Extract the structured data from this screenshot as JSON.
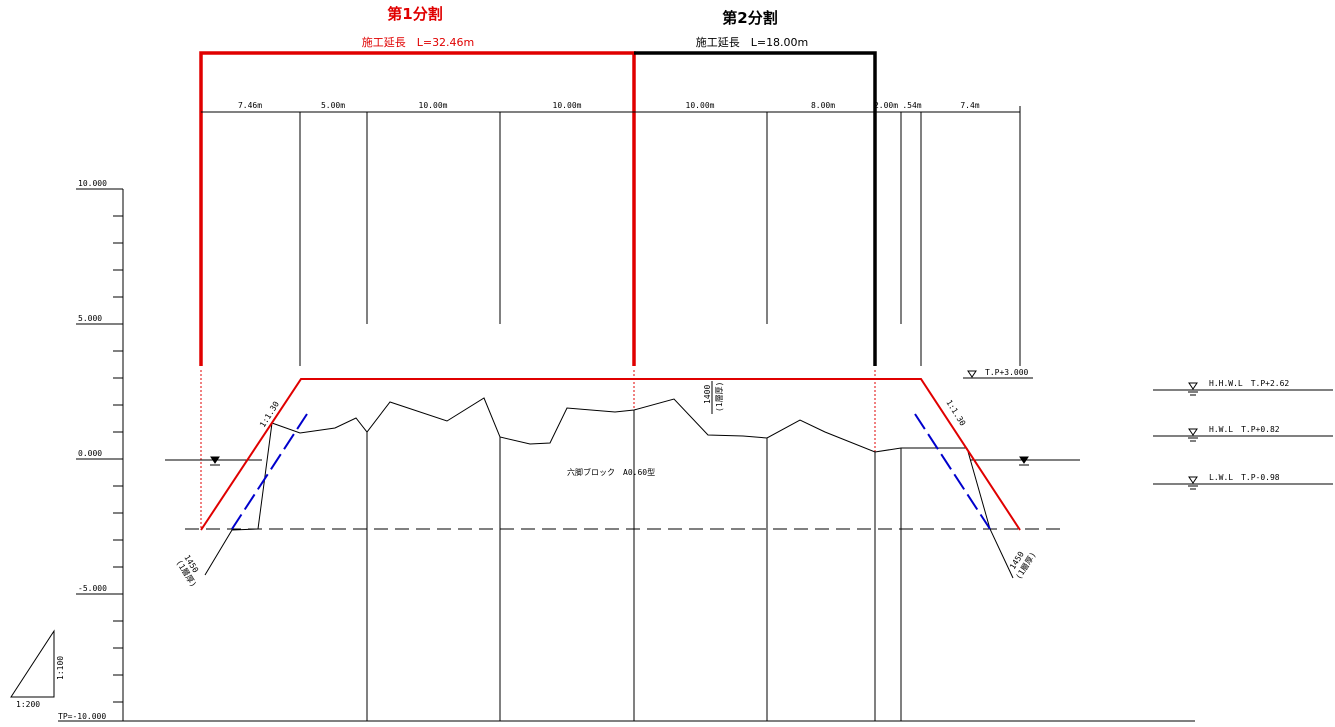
{
  "segments": {
    "seg1": {
      "title": "第1分割",
      "length": "施工延長　L=32.46m",
      "color": "#e00000"
    },
    "seg2": {
      "title": "第2分割",
      "length": "施工延長　L=18.00m",
      "color": "#000000"
    }
  },
  "dimensions": [
    "7.46m",
    "5.00m",
    "10.00m",
    "10.00m",
    "10.00m",
    "8.00m",
    "2.00m",
    ".54m",
    "7.4m"
  ],
  "elevation_axis": {
    "labels": [
      "10.000",
      "5.000",
      "0.000",
      "-5.000",
      "TP=-10.000"
    ]
  },
  "water_levels": {
    "hhwl": "H.H.W.L　T.P+2.62",
    "hwl": "H.W.L　T.P+0.82",
    "lwl": "L.W.L　T.P-0.98"
  },
  "crown_level": "T.P+3.000",
  "block_label": "六脚ブロック　A0.60型",
  "slope_left": "1:1.30",
  "slope_right": "1:1.30",
  "thickness_center": {
    "value": "1400",
    "note": "(1層厚)"
  },
  "thickness_left": {
    "value": "1450",
    "note": "(1層厚)"
  },
  "thickness_right": {
    "value": "1450",
    "note": "(1層厚)"
  },
  "scale": {
    "vertical": "1:100",
    "horizontal": "1:200"
  },
  "colors": {
    "construction_line": "#e00000",
    "armor_line": "#0000cc",
    "ink": "#000000"
  }
}
